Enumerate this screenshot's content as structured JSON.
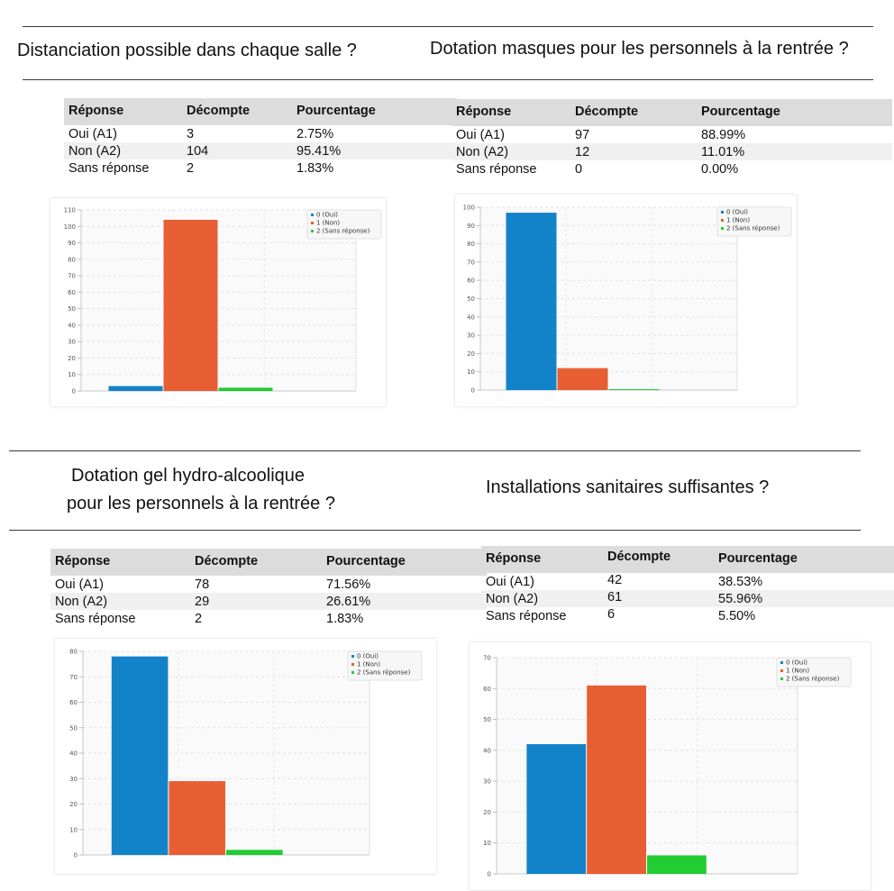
{
  "colors": {
    "oui": "#1283c9",
    "non": "#e85e33",
    "sans": "#22cc33"
  },
  "legend": [
    "0 (Oui)",
    "1 (Non)",
    "2 (Sans réponse)"
  ],
  "table_headers": [
    "Réponse",
    "Décompte",
    "Pourcentage"
  ],
  "sections": [
    {
      "title_lines": [
        "Distanciation possible dans chaque salle ?"
      ],
      "rows": [
        {
          "reponse": "Oui (A1)",
          "decompte": "3",
          "pourcentage": "2.75%"
        },
        {
          "reponse": "Non (A2)",
          "decompte": "104",
          "pourcentage": "95.41%"
        },
        {
          "reponse": "Sans réponse",
          "decompte": "2",
          "pourcentage": "1.83%"
        }
      ]
    },
    {
      "title_lines": [
        "Dotation masques pour les personnels à la rentrée ?"
      ],
      "rows": [
        {
          "reponse": "Oui (A1)",
          "decompte": "97",
          "pourcentage": "88.99%"
        },
        {
          "reponse": "Non (A2)",
          "decompte": "12",
          "pourcentage": "11.01%"
        },
        {
          "reponse": "Sans réponse",
          "decompte": "0",
          "pourcentage": "0.00%"
        }
      ]
    },
    {
      "title_lines": [
        "Dotation gel hydro-alcoolique",
        "pour les personnels à la rentrée ?"
      ],
      "rows": [
        {
          "reponse": "Oui (A1)",
          "decompte": "78",
          "pourcentage": "71.56%"
        },
        {
          "reponse": "Non (A2)",
          "decompte": "29",
          "pourcentage": "26.61%"
        },
        {
          "reponse": "Sans réponse",
          "decompte": "2",
          "pourcentage": "1.83%"
        }
      ]
    },
    {
      "title_lines": [
        "Installations sanitaires suffisantes ?"
      ],
      "rows": [
        {
          "reponse": "Oui (A1)",
          "decompte": "42",
          "pourcentage": "38.53%"
        },
        {
          "reponse": "Non (A2)",
          "decompte": "61",
          "pourcentage": "55.96%"
        },
        {
          "reponse": "Sans réponse",
          "decompte": "6",
          "pourcentage": "5.50%"
        }
      ]
    }
  ],
  "chart_data": [
    {
      "type": "bar",
      "categories": [
        "0 (Oui)",
        "1 (Non)",
        "2 (Sans réponse)"
      ],
      "values": [
        3,
        104,
        2
      ],
      "ylim": [
        0,
        110
      ],
      "yticks": [
        0,
        10,
        20,
        30,
        40,
        50,
        60,
        70,
        80,
        90,
        100,
        110
      ],
      "grid": true,
      "legend_position": "top-right"
    },
    {
      "type": "bar",
      "categories": [
        "0 (Oui)",
        "1 (Non)",
        "2 (Sans réponse)"
      ],
      "values": [
        97,
        12,
        0
      ],
      "ylim": [
        0,
        100
      ],
      "yticks": [
        0,
        10,
        20,
        30,
        40,
        50,
        60,
        70,
        80,
        90,
        100
      ],
      "grid": true,
      "legend_position": "top-right"
    },
    {
      "type": "bar",
      "categories": [
        "0 (Oui)",
        "1 (Non)",
        "2 (Sans réponse)"
      ],
      "values": [
        78,
        29,
        2
      ],
      "ylim": [
        0,
        80
      ],
      "yticks": [
        0,
        10,
        20,
        30,
        40,
        50,
        60,
        70,
        80
      ],
      "grid": true,
      "legend_position": "top-right"
    },
    {
      "type": "bar",
      "categories": [
        "0 (Oui)",
        "1 (Non)",
        "2 (Sans réponse)"
      ],
      "values": [
        42,
        61,
        6
      ],
      "ylim": [
        0,
        70
      ],
      "yticks": [
        0,
        10,
        20,
        30,
        40,
        50,
        60,
        70
      ],
      "grid": true,
      "legend_position": "top-right"
    }
  ]
}
